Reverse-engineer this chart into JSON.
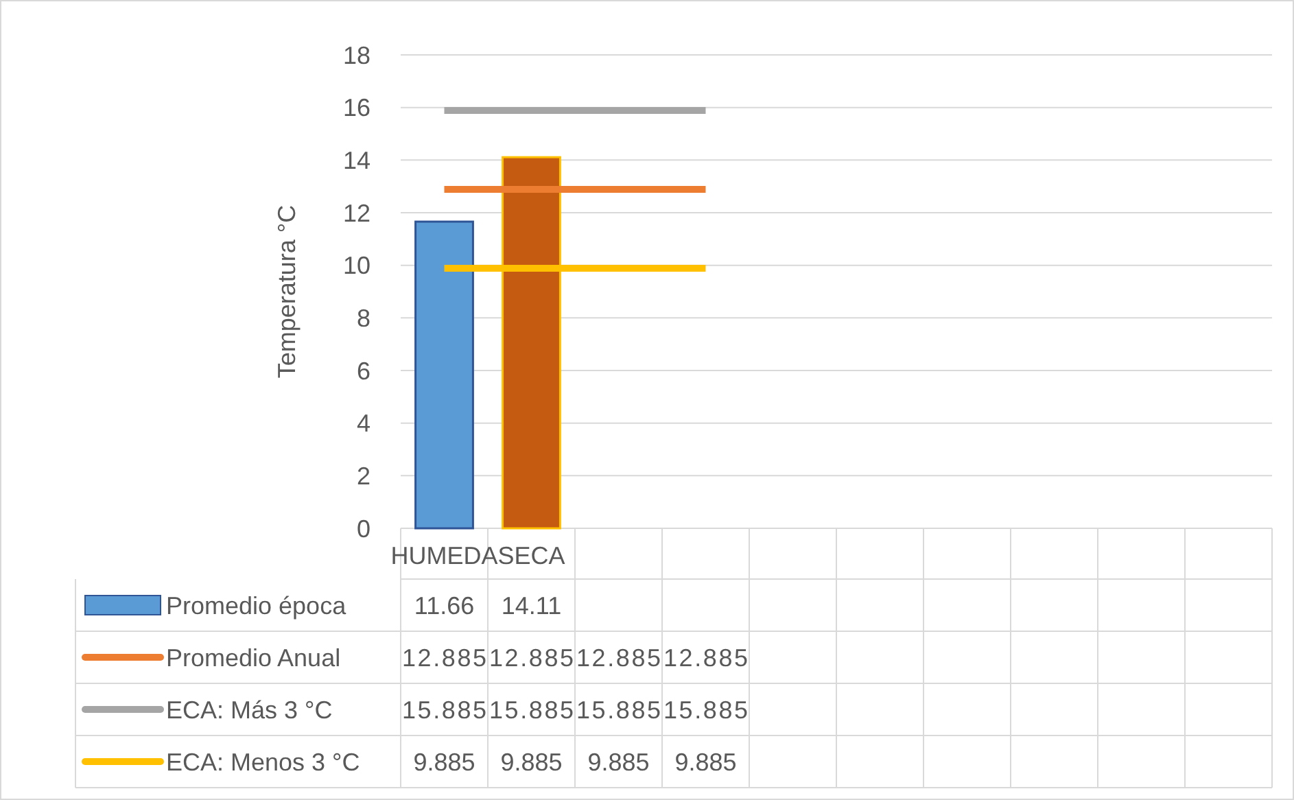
{
  "chart_data": {
    "type": "bar",
    "ylabel": "Temperatura °C",
    "categories": [
      "HUMEDA",
      "SECA",
      null,
      null,
      null,
      null,
      null,
      null,
      null,
      null
    ],
    "series": [
      {
        "name": "Promedio época",
        "colors": [
          "#5b9bd5",
          "#c55a11",
          "#5b9bd5",
          "#5b9bd5",
          "#5b9bd5",
          "#5b9bd5",
          "#5b9bd5",
          "#5b9bd5",
          "#5b9bd5",
          "#5b9bd5"
        ],
        "color": "#5b9bd5",
        "values": [
          11.66,
          14.11,
          null,
          null,
          null,
          null,
          null,
          null,
          null,
          null
        ]
      },
      {
        "name": "Promedio Anual",
        "type": "line",
        "color": "#ed7d31",
        "values": [
          12.885,
          12.885,
          12.885,
          12.885,
          null,
          null,
          null,
          null,
          null,
          null
        ]
      },
      {
        "name": "ECA: Más 3 °C",
        "type": "line",
        "color": "#a5a5a5",
        "values": [
          15.885,
          15.885,
          15.885,
          15.885,
          null,
          null,
          null,
          null,
          null,
          null
        ]
      },
      {
        "name": "ECA: Menos 3 °C",
        "type": "line",
        "color": "#ffc000",
        "values": [
          9.885,
          9.885,
          9.885,
          9.885,
          null,
          null,
          null,
          null,
          null,
          null
        ]
      }
    ],
    "ylim": [
      0,
      18
    ],
    "yticks": [
      0,
      2,
      4,
      6,
      8,
      10,
      12,
      14,
      16,
      18
    ],
    "grid": "y",
    "legend": "bottom",
    "data_labels": true,
    "line_style": "solid"
  }
}
